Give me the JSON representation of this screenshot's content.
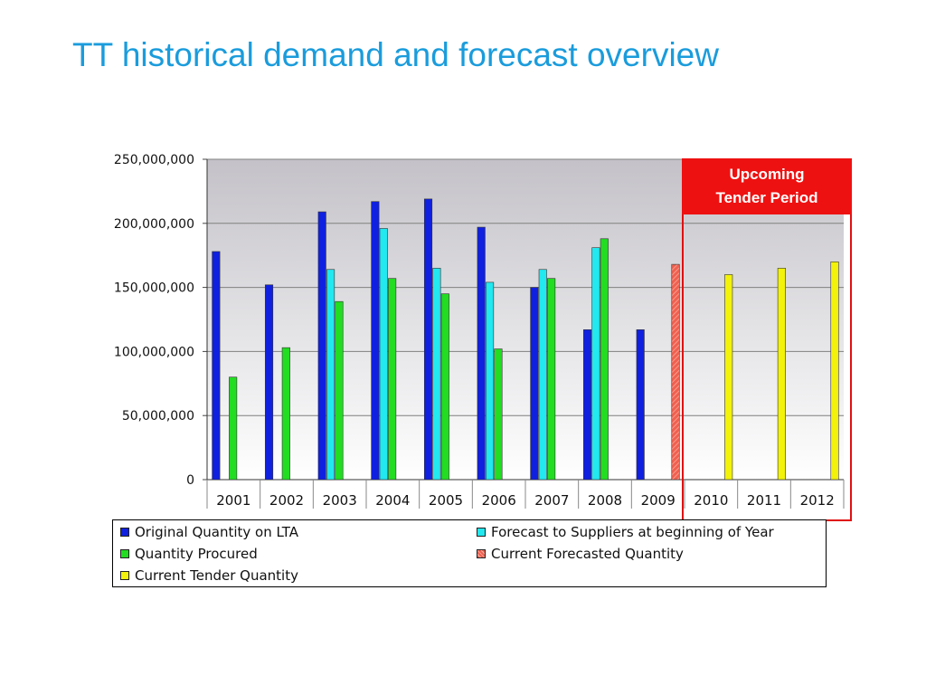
{
  "slide": {
    "title": "TT historical demand and forecast overview"
  },
  "callout": {
    "line1": "Upcoming",
    "line2": "Tender Period"
  },
  "chart_data": {
    "type": "bar",
    "title": "",
    "xlabel": "",
    "ylabel": "",
    "ylim": [
      0,
      250000000
    ],
    "yticks": [
      0,
      50000000,
      100000000,
      150000000,
      200000000,
      250000000
    ],
    "ytick_labels": [
      "0",
      "50,000,000",
      "100,000,000",
      "150,000,000",
      "200,000,000",
      "250,000,000"
    ],
    "grid": true,
    "legend_position": "bottom",
    "categories": [
      "2001",
      "2002",
      "2003",
      "2004",
      "2005",
      "2006",
      "2007",
      "2008",
      "2009",
      "2010",
      "2011",
      "2012"
    ],
    "series": [
      {
        "name": "Original Quantity on LTA",
        "color": "#1020e0",
        "pattern": "solid",
        "values": [
          178000000,
          152000000,
          209000000,
          217000000,
          219000000,
          197000000,
          150000000,
          117000000,
          117000000,
          null,
          null,
          null
        ]
      },
      {
        "name": "Forecast to Suppliers at beginning of Year",
        "color": "#22e8f0",
        "pattern": "solid",
        "values": [
          null,
          null,
          164000000,
          196000000,
          165000000,
          154000000,
          164000000,
          181000000,
          null,
          null,
          null,
          null
        ]
      },
      {
        "name": "Quantity Procured",
        "color": "#22dd22",
        "pattern": "solid",
        "values": [
          80000000,
          103000000,
          139000000,
          157000000,
          145000000,
          102000000,
          157000000,
          188000000,
          null,
          null,
          null,
          null
        ]
      },
      {
        "name": "Current Forecasted Quantity",
        "color": "#f06050",
        "pattern": "hatched",
        "values": [
          null,
          null,
          null,
          null,
          null,
          null,
          null,
          null,
          168000000,
          null,
          null,
          null
        ]
      },
      {
        "name": "Current Tender Quantity",
        "color": "#f2f20a",
        "pattern": "solid",
        "values": [
          null,
          null,
          null,
          null,
          null,
          null,
          null,
          null,
          null,
          160000000,
          165000000,
          170000000
        ]
      }
    ]
  }
}
